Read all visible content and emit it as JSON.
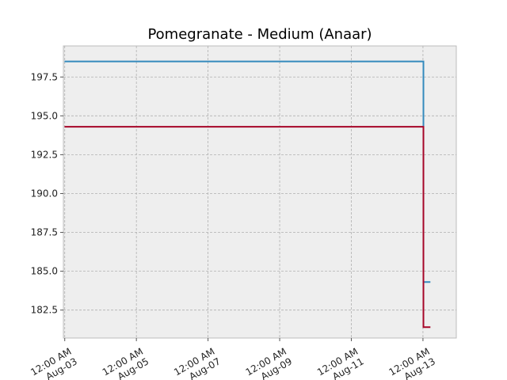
{
  "chart_data": {
    "type": "line",
    "title": "Pomegranate - Medium (Anaar)",
    "xlabel": "",
    "ylabel": "",
    "step": true,
    "x_ticks": [
      {
        "label1": "12:00 AM",
        "label2": "Aug-03",
        "day": 3
      },
      {
        "label1": "12:00 AM",
        "label2": "Aug-05",
        "day": 5
      },
      {
        "label1": "12:00 AM",
        "label2": "Aug-07",
        "day": 7
      },
      {
        "label1": "12:00 AM",
        "label2": "Aug-09",
        "day": 9
      },
      {
        "label1": "12:00 AM",
        "label2": "Aug-11",
        "day": 11
      },
      {
        "label1": "12:00 AM",
        "label2": "Aug-13",
        "day": 13
      }
    ],
    "y_ticks": [
      "182.5",
      "185.0",
      "187.5",
      "190.0",
      "192.5",
      "195.0",
      "197.5"
    ],
    "xlim": [
      "Aug-02 11:05 PM",
      "Aug-13 10:20 PM"
    ],
    "ylim": [
      180.7,
      199.5
    ],
    "grid": true,
    "series": [
      {
        "color": "#348ABD",
        "points": [
          [
            "Aug-02 11:50 PM",
            198.5
          ],
          [
            "Aug-13 12:20 AM",
            198.5
          ],
          [
            "Aug-13 12:20 AM",
            184.3
          ],
          [
            "Aug-13 05:00 AM",
            184.3
          ]
        ]
      },
      {
        "color": "#A60628",
        "points": [
          [
            "Aug-02 11:50 PM",
            194.3
          ],
          [
            "Aug-13 12:20 AM",
            194.3
          ],
          [
            "Aug-13 12:20 AM",
            181.4
          ],
          [
            "Aug-13 05:00 AM",
            181.4
          ]
        ]
      }
    ]
  }
}
